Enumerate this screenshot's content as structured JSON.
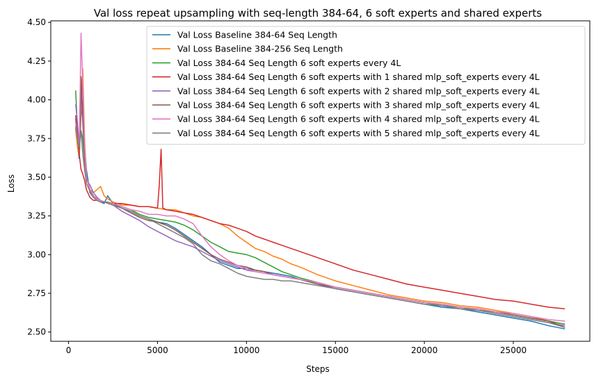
{
  "chart_data": {
    "type": "line",
    "title": "Val loss repeat upsampling with seq-length 384-64, 6 soft experts and shared experts",
    "xlabel": "Steps",
    "ylabel": "Loss",
    "xlim": [
      -1000,
      29300
    ],
    "ylim": [
      2.44,
      4.51
    ],
    "xticks": [
      0,
      5000,
      10000,
      15000,
      20000,
      25000
    ],
    "yticks": [
      2.5,
      2.75,
      3.0,
      3.25,
      3.5,
      3.75,
      4.0,
      4.25,
      4.5
    ],
    "xtick_labels": [
      "0",
      "5000",
      "10000",
      "15000",
      "20000",
      "25000"
    ],
    "ytick_labels": [
      "2.50",
      "2.75",
      "3.00",
      "3.25",
      "3.50",
      "3.75",
      "4.00",
      "4.25",
      "4.50"
    ],
    "grid": false,
    "legend_position": "top-right",
    "series": [
      {
        "name": "Val Loss Baseline 384-64 Seq Length",
        "color": "#1f77b4",
        "x": [
          400,
          500,
          600,
          700,
          800,
          900,
          1000,
          1200,
          1400,
          1600,
          1800,
          2000,
          2200,
          2500,
          3000,
          3500,
          4000,
          4500,
          5000,
          5500,
          6000,
          6500,
          7000,
          7500,
          8000,
          8500,
          9000,
          9500,
          10000,
          10500,
          11000,
          11500,
          12000,
          12500,
          13000,
          14000,
          15000,
          16000,
          17000,
          18000,
          19000,
          20000,
          21000,
          22000,
          23000,
          24000,
          25000,
          26000,
          27000,
          27900
        ],
        "y": [
          3.82,
          3.7,
          3.62,
          3.9,
          3.98,
          3.7,
          3.55,
          3.4,
          3.37,
          3.35,
          3.34,
          3.33,
          3.38,
          3.33,
          3.3,
          3.28,
          3.25,
          3.23,
          3.21,
          3.2,
          3.17,
          3.13,
          3.09,
          3.05,
          3.0,
          2.95,
          2.93,
          2.91,
          2.91,
          2.9,
          2.89,
          2.88,
          2.87,
          2.86,
          2.84,
          2.81,
          2.78,
          2.76,
          2.74,
          2.72,
          2.7,
          2.68,
          2.66,
          2.65,
          2.63,
          2.61,
          2.59,
          2.57,
          2.54,
          2.52
        ]
      },
      {
        "name": "Val Loss Baseline 384-256 Seq Length",
        "color": "#ff7f0e",
        "x": [
          400,
          500,
          600,
          700,
          800,
          900,
          1000,
          1200,
          1400,
          1600,
          1800,
          2000,
          2200,
          2500,
          3000,
          3500,
          4000,
          4500,
          5000,
          5500,
          6000,
          6500,
          7000,
          7500,
          8000,
          8500,
          9000,
          9500,
          10000,
          10500,
          11000,
          11500,
          12000,
          12500,
          13000,
          14000,
          15000,
          16000,
          17000,
          18000,
          19000,
          20000,
          21000,
          22000,
          23000,
          24000,
          25000,
          26000,
          27000,
          27900
        ],
        "y": [
          3.8,
          3.7,
          3.64,
          3.95,
          4.2,
          3.75,
          3.5,
          3.42,
          3.4,
          3.42,
          3.44,
          3.38,
          3.36,
          3.34,
          3.32,
          3.32,
          3.31,
          3.31,
          3.3,
          3.29,
          3.29,
          3.27,
          3.25,
          3.24,
          3.22,
          3.2,
          3.17,
          3.12,
          3.08,
          3.04,
          3.02,
          2.99,
          2.97,
          2.94,
          2.92,
          2.87,
          2.83,
          2.8,
          2.77,
          2.74,
          2.72,
          2.7,
          2.69,
          2.67,
          2.66,
          2.64,
          2.62,
          2.6,
          2.57,
          2.55
        ]
      },
      {
        "name": "Val Loss 384-64 Seq Length 6 soft experts every 4L",
        "color": "#2ca02c",
        "x": [
          400,
          500,
          600,
          700,
          800,
          900,
          1000,
          1200,
          1400,
          1600,
          1800,
          2000,
          2200,
          2500,
          3000,
          3500,
          4000,
          4500,
          5000,
          5500,
          6000,
          6500,
          7000,
          7500,
          8000,
          8500,
          9000,
          9500,
          10000,
          10500,
          11000,
          11500,
          12000,
          12500,
          13000,
          14000,
          15000,
          16000,
          17000,
          18000,
          19000,
          20000,
          21000,
          22000,
          23000,
          24000,
          25000,
          26000,
          27000,
          27900
        ],
        "y": [
          4.06,
          3.8,
          3.72,
          3.8,
          3.75,
          3.6,
          3.5,
          3.42,
          3.38,
          3.36,
          3.35,
          3.34,
          3.34,
          3.33,
          3.31,
          3.29,
          3.26,
          3.24,
          3.23,
          3.22,
          3.21,
          3.19,
          3.16,
          3.12,
          3.08,
          3.05,
          3.02,
          3.01,
          3.0,
          2.98,
          2.95,
          2.92,
          2.89,
          2.87,
          2.85,
          2.82,
          2.79,
          2.77,
          2.75,
          2.73,
          2.71,
          2.69,
          2.67,
          2.66,
          2.64,
          2.63,
          2.61,
          2.59,
          2.57,
          2.55
        ]
      },
      {
        "name": "Val Loss 384-64 Seq Length 6 soft experts with 1 shared mlp_soft_experts every 4L",
        "color": "#d62728",
        "x": [
          400,
          500,
          600,
          700,
          800,
          900,
          1000,
          1200,
          1400,
          1600,
          1800,
          2000,
          2500,
          3000,
          3500,
          4000,
          4500,
          5000,
          5100,
          5200,
          5300,
          5500,
          6000,
          6500,
          7000,
          7500,
          8000,
          8500,
          9000,
          9500,
          10000,
          10500,
          11000,
          11500,
          12000,
          12500,
          13000,
          14000,
          15000,
          16000,
          17000,
          18000,
          19000,
          20000,
          21000,
          22000,
          23000,
          24000,
          25000,
          26000,
          27000,
          27900
        ],
        "y": [
          3.9,
          3.8,
          3.65,
          3.55,
          3.52,
          3.48,
          3.42,
          3.37,
          3.35,
          3.35,
          3.34,
          3.34,
          3.33,
          3.33,
          3.32,
          3.31,
          3.31,
          3.3,
          3.45,
          3.68,
          3.3,
          3.29,
          3.28,
          3.27,
          3.26,
          3.24,
          3.22,
          3.2,
          3.19,
          3.17,
          3.15,
          3.12,
          3.1,
          3.08,
          3.06,
          3.04,
          3.02,
          2.98,
          2.94,
          2.9,
          2.87,
          2.84,
          2.81,
          2.79,
          2.77,
          2.75,
          2.73,
          2.71,
          2.7,
          2.68,
          2.66,
          2.65
        ]
      },
      {
        "name": "Val Loss 384-64 Seq Length 6 soft experts with 2 shared mlp_soft_experts every 4L",
        "color": "#9467bd",
        "x": [
          400,
          500,
          600,
          700,
          800,
          900,
          1000,
          1200,
          1400,
          1600,
          1800,
          2000,
          2500,
          3000,
          3500,
          4000,
          4500,
          5000,
          5500,
          6000,
          6500,
          7000,
          7500,
          8000,
          8500,
          9000,
          9500,
          10000,
          10500,
          11000,
          11500,
          12000,
          12500,
          13000,
          14000,
          15000,
          16000,
          17000,
          18000,
          19000,
          20000,
          21000,
          22000,
          23000,
          24000,
          25000,
          26000,
          27000,
          27900
        ],
        "y": [
          3.97,
          3.85,
          3.7,
          4.05,
          3.85,
          3.62,
          3.48,
          3.45,
          3.4,
          3.37,
          3.35,
          3.34,
          3.32,
          3.28,
          3.25,
          3.22,
          3.18,
          3.15,
          3.12,
          3.09,
          3.07,
          3.05,
          3.02,
          2.99,
          2.96,
          2.94,
          2.92,
          2.9,
          2.89,
          2.88,
          2.87,
          2.86,
          2.85,
          2.84,
          2.81,
          2.78,
          2.76,
          2.74,
          2.72,
          2.7,
          2.68,
          2.67,
          2.65,
          2.64,
          2.62,
          2.6,
          2.58,
          2.56,
          2.54
        ]
      },
      {
        "name": "Val Loss 384-64 Seq Length 6 soft experts with 3 shared mlp_soft_experts every 4L",
        "color": "#8c564b",
        "x": [
          400,
          500,
          600,
          700,
          800,
          900,
          1000,
          1200,
          1400,
          1600,
          1800,
          2000,
          2500,
          3000,
          3500,
          4000,
          4500,
          5000,
          5500,
          6000,
          6500,
          7000,
          7500,
          8000,
          8500,
          9000,
          9500,
          10000,
          10500,
          11000,
          11500,
          12000,
          12500,
          13000,
          14000,
          15000,
          16000,
          17000,
          18000,
          19000,
          20000,
          21000,
          22000,
          23000,
          24000,
          25000,
          26000,
          27000,
          27900
        ],
        "y": [
          3.88,
          3.75,
          3.68,
          4.15,
          3.92,
          3.65,
          3.5,
          3.42,
          3.38,
          3.36,
          3.35,
          3.34,
          3.32,
          3.3,
          3.27,
          3.24,
          3.22,
          3.21,
          3.19,
          3.16,
          3.12,
          3.08,
          3.04,
          3.0,
          2.97,
          2.95,
          2.93,
          2.92,
          2.9,
          2.89,
          2.87,
          2.86,
          2.85,
          2.84,
          2.81,
          2.79,
          2.77,
          2.75,
          2.73,
          2.71,
          2.69,
          2.68,
          2.66,
          2.65,
          2.63,
          2.61,
          2.59,
          2.57,
          2.53
        ]
      },
      {
        "name": "Val Loss 384-64 Seq Length 6 soft experts with 4 shared mlp_soft_experts every 4L",
        "color": "#e377c2",
        "x": [
          400,
          500,
          600,
          700,
          800,
          900,
          1000,
          1200,
          1400,
          1600,
          1800,
          2000,
          2500,
          3000,
          3500,
          4000,
          4500,
          5000,
          5500,
          6000,
          6500,
          7000,
          7500,
          8000,
          8500,
          9000,
          9500,
          10000,
          10500,
          11000,
          11500,
          12000,
          12500,
          13000,
          14000,
          15000,
          16000,
          17000,
          18000,
          19000,
          20000,
          21000,
          22000,
          23000,
          24000,
          25000,
          26000,
          27000,
          27900
        ],
        "y": [
          3.85,
          3.75,
          3.7,
          4.43,
          4.1,
          3.7,
          3.5,
          3.42,
          3.38,
          3.36,
          3.35,
          3.34,
          3.33,
          3.31,
          3.29,
          3.28,
          3.26,
          3.26,
          3.25,
          3.25,
          3.23,
          3.2,
          3.12,
          3.05,
          3.0,
          2.96,
          2.93,
          2.91,
          2.89,
          2.88,
          2.87,
          2.86,
          2.85,
          2.84,
          2.82,
          2.79,
          2.77,
          2.75,
          2.73,
          2.71,
          2.69,
          2.68,
          2.66,
          2.65,
          2.63,
          2.62,
          2.6,
          2.58,
          2.57
        ]
      },
      {
        "name": "Val Loss 384-64 Seq Length 6 soft experts with 5 shared mlp_soft_experts every 4L",
        "color": "#7f7f7f",
        "x": [
          400,
          500,
          600,
          700,
          800,
          900,
          1000,
          1200,
          1400,
          1600,
          1800,
          2000,
          2500,
          3000,
          3500,
          4000,
          4500,
          5000,
          5500,
          6000,
          6500,
          7000,
          7500,
          8000,
          8500,
          9000,
          9500,
          10000,
          10500,
          11000,
          11500,
          12000,
          12500,
          13000,
          14000,
          15000,
          16000,
          17000,
          18000,
          19000,
          20000,
          21000,
          22000,
          23000,
          24000,
          25000,
          26000,
          27000,
          27900
        ],
        "y": [
          3.83,
          3.75,
          3.7,
          3.8,
          3.65,
          3.55,
          3.46,
          3.41,
          3.37,
          3.35,
          3.34,
          3.34,
          3.32,
          3.3,
          3.28,
          3.25,
          3.23,
          3.2,
          3.17,
          3.14,
          3.11,
          3.07,
          3.0,
          2.96,
          2.94,
          2.91,
          2.88,
          2.86,
          2.85,
          2.84,
          2.84,
          2.83,
          2.83,
          2.82,
          2.8,
          2.78,
          2.76,
          2.74,
          2.72,
          2.7,
          2.68,
          2.67,
          2.65,
          2.64,
          2.62,
          2.6,
          2.58,
          2.56,
          2.53
        ]
      }
    ]
  }
}
